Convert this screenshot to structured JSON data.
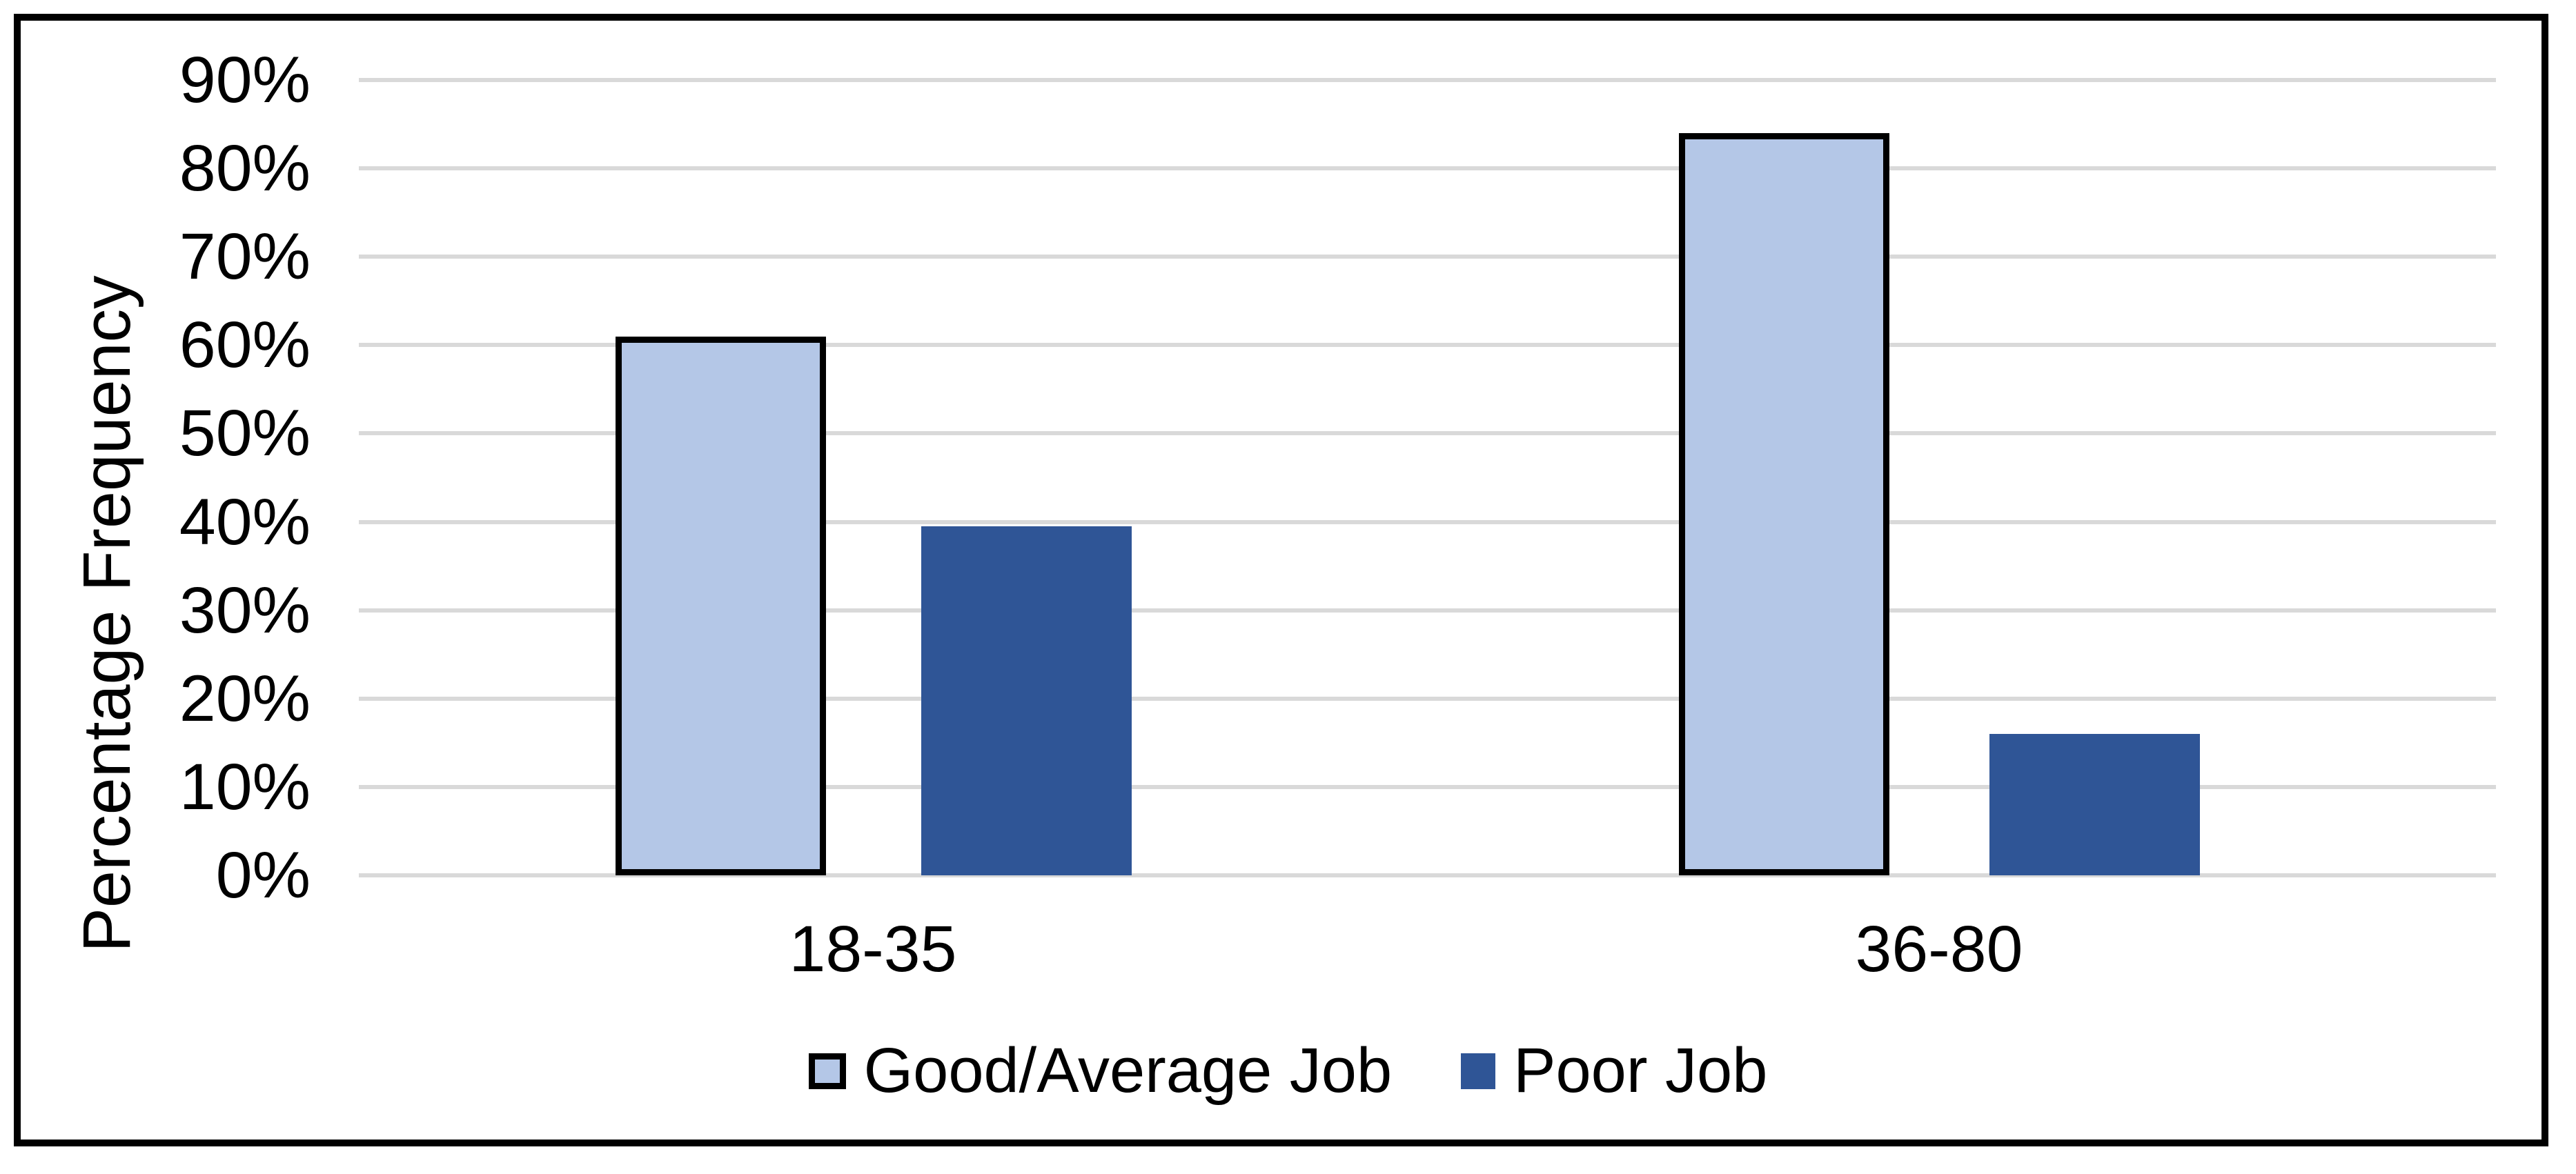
{
  "chart_data": {
    "type": "bar",
    "title": "",
    "xlabel": "",
    "ylabel": "Percentage Frequency",
    "categories": [
      "18-35",
      "36-80"
    ],
    "series": [
      {
        "name": "Good/Average Job",
        "values": [
          61,
          84
        ]
      },
      {
        "name": "Poor Job",
        "values": [
          39.5,
          16
        ]
      }
    ],
    "ylim": [
      0,
      90
    ],
    "ytick_step": 10,
    "y_tick_labels": [
      "0%",
      "10%",
      "20%",
      "30%",
      "40%",
      "50%",
      "60%",
      "70%",
      "80%",
      "90%"
    ],
    "grid": true,
    "legend_position": "bottom",
    "colors": {
      "good_average_job_fill": "#B4C7E7",
      "good_average_job_outline": "#000000",
      "poor_job_fill": "#2F5596",
      "gridline": "#D9D9D9",
      "frame_border": "#000000",
      "text": "#000000"
    }
  }
}
